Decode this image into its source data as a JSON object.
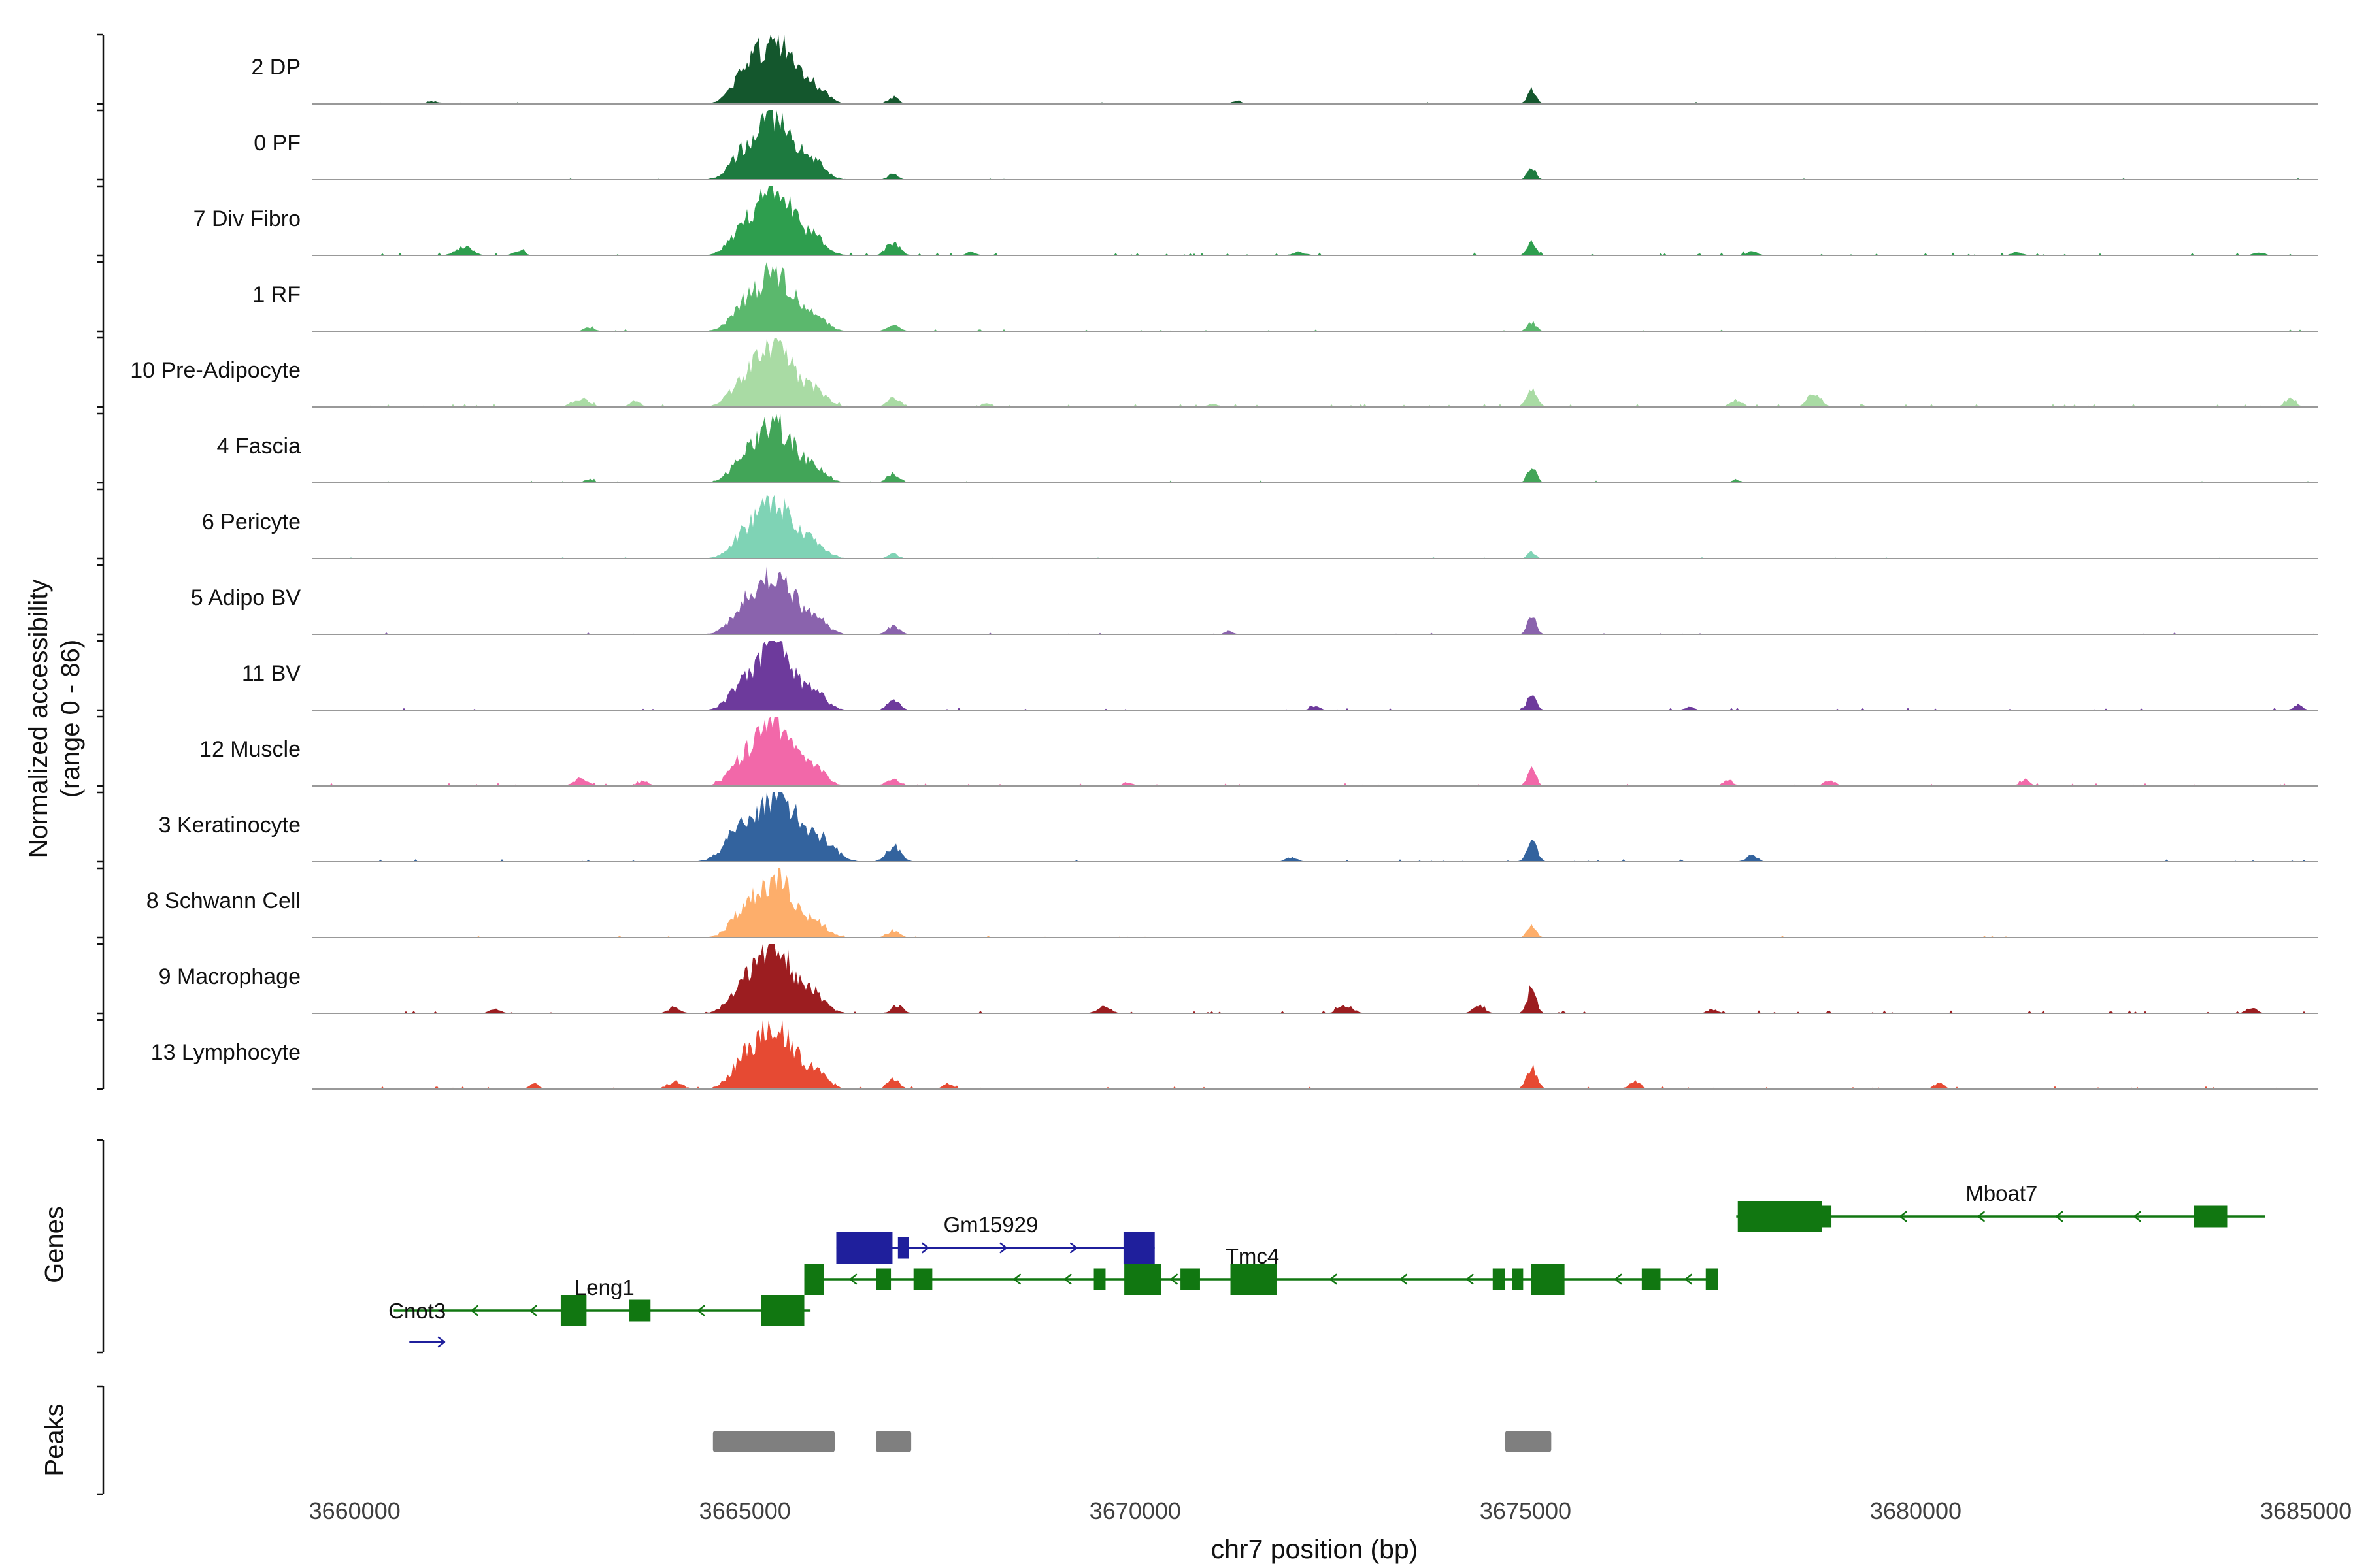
{
  "labels": {
    "yaxis_line1": "Normalized accessibility",
    "yaxis_line2": "(range 0 - 86)",
    "genes": "Genes",
    "peaks": "Peaks"
  },
  "axis": {
    "xlabel": "chr7 position (bp)",
    "ticks": [
      3660000,
      3665000,
      3670000,
      3675000,
      3680000,
      3685000
    ],
    "bp_min": 3659450,
    "bp_max": 3685150
  },
  "chart_data": {
    "type": "area",
    "title": "",
    "xlabel": "chr7 position (bp)",
    "ylabel": "Normalized accessibility (range 0 - 86)",
    "xlim": [
      3659450,
      3685150
    ],
    "track_ylim": [
      0,
      86
    ],
    "legend": "none",
    "tracks": [
      {
        "label": "2 DP",
        "color": "#14572d",
        "noise": {
          "amp": 0.03,
          "p": 0.012
        },
        "peaks": [
          [
            3665380,
            240,
            0.95
          ],
          [
            3664950,
            160,
            0.27
          ],
          [
            3665900,
            150,
            0.21
          ],
          [
            3666900,
            70,
            0.1
          ],
          [
            3671300,
            60,
            0.05
          ],
          [
            3675080,
            55,
            0.22
          ],
          [
            3661000,
            80,
            0.04
          ]
        ]
      },
      {
        "label": "0 PF",
        "color": "#1d7a3f",
        "noise": {
          "amp": 0.025,
          "p": 0.01
        },
        "peaks": [
          [
            3665380,
            240,
            0.9
          ],
          [
            3664950,
            160,
            0.25
          ],
          [
            3665900,
            150,
            0.2
          ],
          [
            3666900,
            70,
            0.08
          ],
          [
            3675080,
            55,
            0.17
          ]
        ]
      },
      {
        "label": "7 Div Fibro",
        "color": "#2e9e4e",
        "noise": {
          "amp": 0.045,
          "p": 0.05
        },
        "peaks": [
          [
            3665380,
            240,
            0.95
          ],
          [
            3664950,
            160,
            0.27
          ],
          [
            3665900,
            150,
            0.21
          ],
          [
            3661400,
            110,
            0.12
          ],
          [
            3662100,
            70,
            0.06
          ],
          [
            3666900,
            85,
            0.18
          ],
          [
            3667900,
            60,
            0.05
          ],
          [
            3672100,
            80,
            0.05
          ],
          [
            3675080,
            55,
            0.2
          ],
          [
            3677900,
            75,
            0.06
          ],
          [
            3681300,
            65,
            0.05
          ],
          [
            3684400,
            65,
            0.05
          ]
        ]
      },
      {
        "label": "1 RF",
        "color": "#5bb86d",
        "noise": {
          "amp": 0.03,
          "p": 0.02
        },
        "peaks": [
          [
            3665380,
            240,
            0.85
          ],
          [
            3664950,
            160,
            0.24
          ],
          [
            3665900,
            150,
            0.19
          ],
          [
            3663000,
            70,
            0.05
          ],
          [
            3666900,
            75,
            0.1
          ],
          [
            3675080,
            55,
            0.13
          ]
        ]
      },
      {
        "label": "10 Pre-Adipocyte",
        "color": "#a9dba4",
        "noise": {
          "amp": 0.05,
          "p": 0.06
        },
        "peaks": [
          [
            3665380,
            240,
            0.9
          ],
          [
            3664950,
            160,
            0.26
          ],
          [
            3665900,
            150,
            0.2
          ],
          [
            3662900,
            110,
            0.12
          ],
          [
            3663600,
            70,
            0.08
          ],
          [
            3666900,
            85,
            0.14
          ],
          [
            3668100,
            65,
            0.06
          ],
          [
            3671000,
            65,
            0.05
          ],
          [
            3675080,
            65,
            0.3
          ],
          [
            3677700,
            75,
            0.1
          ],
          [
            3678700,
            85,
            0.2
          ],
          [
            3684800,
            75,
            0.12
          ]
        ]
      },
      {
        "label": "4 Fascia",
        "color": "#42a558",
        "noise": {
          "amp": 0.035,
          "p": 0.025
        },
        "peaks": [
          [
            3665380,
            240,
            0.85
          ],
          [
            3664950,
            160,
            0.24
          ],
          [
            3665900,
            150,
            0.19
          ],
          [
            3663000,
            65,
            0.05
          ],
          [
            3666900,
            80,
            0.13
          ],
          [
            3675080,
            55,
            0.25
          ],
          [
            3677700,
            55,
            0.05
          ]
        ]
      },
      {
        "label": "6 Pericyte",
        "color": "#7fd3b5",
        "noise": {
          "amp": 0.02,
          "p": 0.012
        },
        "peaks": [
          [
            3665380,
            240,
            0.8
          ],
          [
            3664950,
            160,
            0.22
          ],
          [
            3665900,
            150,
            0.18
          ],
          [
            3666900,
            65,
            0.07
          ],
          [
            3675080,
            50,
            0.1
          ]
        ]
      },
      {
        "label": "5 Adipo BV",
        "color": "#8a63ad",
        "noise": {
          "amp": 0.03,
          "p": 0.02
        },
        "peaks": [
          [
            3665380,
            240,
            0.9
          ],
          [
            3664950,
            160,
            0.26
          ],
          [
            3665900,
            150,
            0.2
          ],
          [
            3666900,
            75,
            0.13
          ],
          [
            3671200,
            55,
            0.05
          ],
          [
            3675080,
            55,
            0.27
          ]
        ]
      },
      {
        "label": "11 BV",
        "color": "#6d3a9c",
        "noise": {
          "amp": 0.035,
          "p": 0.03
        },
        "peaks": [
          [
            3665380,
            240,
            0.92
          ],
          [
            3664950,
            160,
            0.26
          ],
          [
            3665900,
            150,
            0.2
          ],
          [
            3666900,
            75,
            0.16
          ],
          [
            3672300,
            65,
            0.06
          ],
          [
            3675080,
            55,
            0.24
          ],
          [
            3677100,
            55,
            0.05
          ],
          [
            3684900,
            55,
            0.08
          ]
        ]
      },
      {
        "label": "12 Muscle",
        "color": "#f268a9",
        "noise": {
          "amp": 0.05,
          "p": 0.05
        },
        "peaks": [
          [
            3665380,
            240,
            0.9
          ],
          [
            3664950,
            160,
            0.26
          ],
          [
            3665900,
            150,
            0.2
          ],
          [
            3662900,
            95,
            0.1
          ],
          [
            3663700,
            65,
            0.07
          ],
          [
            3666900,
            85,
            0.11
          ],
          [
            3669900,
            65,
            0.05
          ],
          [
            3675080,
            55,
            0.26
          ],
          [
            3677600,
            65,
            0.08
          ],
          [
            3678900,
            65,
            0.09
          ],
          [
            3681400,
            65,
            0.08
          ]
        ]
      },
      {
        "label": "3 Keratinocyte",
        "color": "#33639e",
        "noise": {
          "amp": 0.04,
          "p": 0.03
        },
        "peaks": [
          [
            3665400,
            290,
            0.93
          ],
          [
            3664900,
            180,
            0.3
          ],
          [
            3666000,
            170,
            0.25
          ],
          [
            3666900,
            95,
            0.22
          ],
          [
            3672000,
            75,
            0.06
          ],
          [
            3675080,
            65,
            0.3
          ],
          [
            3677900,
            75,
            0.09
          ]
        ]
      },
      {
        "label": "8 Schwann Cell",
        "color": "#fdae6b",
        "noise": {
          "amp": 0.03,
          "p": 0.02
        },
        "peaks": [
          [
            3665380,
            240,
            0.85
          ],
          [
            3664950,
            160,
            0.24
          ],
          [
            3665900,
            150,
            0.19
          ],
          [
            3666900,
            80,
            0.1
          ],
          [
            3675080,
            55,
            0.19
          ]
        ]
      },
      {
        "label": "9 Macrophage",
        "color": "#9c1d20",
        "noise": {
          "amp": 0.045,
          "p": 0.05
        },
        "peaks": [
          [
            3665380,
            240,
            0.95
          ],
          [
            3664950,
            160,
            0.27
          ],
          [
            3665900,
            150,
            0.21
          ],
          [
            3661800,
            70,
            0.06
          ],
          [
            3664100,
            75,
            0.09
          ],
          [
            3666950,
            75,
            0.11
          ],
          [
            3669600,
            85,
            0.09
          ],
          [
            3672700,
            95,
            0.11
          ],
          [
            3674400,
            75,
            0.11
          ],
          [
            3675080,
            55,
            0.38
          ],
          [
            3677400,
            65,
            0.06
          ],
          [
            3684300,
            65,
            0.08
          ]
        ]
      },
      {
        "label": "13 Lymphocyte",
        "color": "#e64a33",
        "noise": {
          "amp": 0.045,
          "p": 0.05
        },
        "peaks": [
          [
            3665380,
            240,
            0.95
          ],
          [
            3664950,
            160,
            0.27
          ],
          [
            3665900,
            150,
            0.21
          ],
          [
            3662300,
            65,
            0.08
          ],
          [
            3664100,
            95,
            0.11
          ],
          [
            3666900,
            75,
            0.16
          ],
          [
            3667600,
            65,
            0.09
          ],
          [
            3675080,
            65,
            0.3
          ],
          [
            3676400,
            75,
            0.11
          ],
          [
            3680300,
            65,
            0.09
          ]
        ]
      }
    ],
    "genes": [
      {
        "name": "Mboat7",
        "color": "#117711",
        "strand": "-",
        "row": 0,
        "start": 3677700,
        "end": 3684480,
        "label_bp": 3681100,
        "exons": [
          [
            3677720,
            3678800,
            "tall"
          ],
          [
            3678800,
            3678920,
            "norm"
          ],
          [
            3683560,
            3683990,
            "norm"
          ]
        ],
        "arrows": [
          3679800,
          3680800,
          3681800,
          3682800
        ]
      },
      {
        "name": "Gm15929",
        "color": "#1f1f9c",
        "strand": "+",
        "row": 1,
        "start": 3666170,
        "end": 3670250,
        "label_bp": 3668150,
        "exons": [
          [
            3666170,
            3666890,
            "tall"
          ],
          [
            3666960,
            3667100,
            "norm"
          ],
          [
            3669850,
            3670250,
            "tall"
          ]
        ],
        "arrows": [
          3667350,
          3668350,
          3669250
        ]
      },
      {
        "name": "Tmc4",
        "color": "#117711",
        "strand": "-",
        "row": 2,
        "start": 3665760,
        "end": 3677470,
        "label_bp": 3671500,
        "exons": [
          [
            3665760,
            3666010,
            "tall"
          ],
          [
            3666680,
            3666870,
            "norm"
          ],
          [
            3667160,
            3667400,
            "norm"
          ],
          [
            3669470,
            3669620,
            "norm"
          ],
          [
            3669860,
            3670330,
            "tall"
          ],
          [
            3670580,
            3670830,
            "norm"
          ],
          [
            3671220,
            3671810,
            "tall"
          ],
          [
            3674580,
            3674740,
            "norm"
          ],
          [
            3674830,
            3674970,
            "norm"
          ],
          [
            3675070,
            3675500,
            "tall"
          ],
          [
            3676490,
            3676730,
            "norm"
          ],
          [
            3677310,
            3677470,
            "norm"
          ]
        ],
        "arrows": [
          3666350,
          3668450,
          3669100,
          3670460,
          3672500,
          3673400,
          3674250,
          3676150,
          3677050
        ]
      },
      {
        "name": "Leng1",
        "color": "#117711",
        "strand": "-",
        "row": 3,
        "start": 3660500,
        "end": 3665840,
        "label_bp": 3663200,
        "exons": [
          [
            3662640,
            3662970,
            "tall"
          ],
          [
            3663520,
            3663790,
            "norm"
          ],
          [
            3665210,
            3665760,
            "tall"
          ]
        ],
        "arrows": [
          3661500,
          3662250,
          3664400
        ]
      },
      {
        "name": "Cnot3",
        "color": "#1f1f9c",
        "strand": "+",
        "row": 3,
        "type": "start-marker",
        "label_bp": 3660800,
        "marker": {
          "row": 4,
          "start": 3660700,
          "end": 3661150
        }
      }
    ],
    "peak_regions": [
      {
        "start": 3664590,
        "end": 3666150
      },
      {
        "start": 3666680,
        "end": 3667130
      },
      {
        "start": 3674740,
        "end": 3675330
      }
    ],
    "peak_color": "#7f7f7f"
  }
}
